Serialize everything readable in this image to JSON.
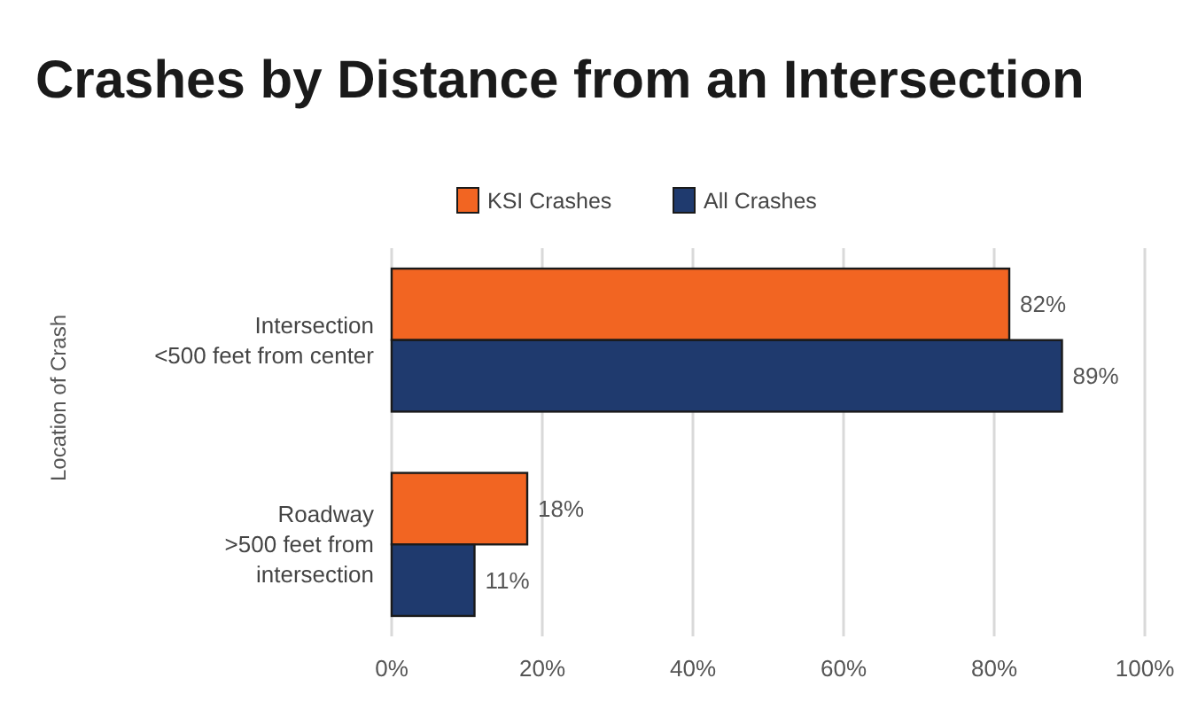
{
  "chart_data": {
    "type": "bar",
    "orientation": "horizontal",
    "title": "Crashes by Distance from an Intersection",
    "ylabel": "Location of Crash",
    "categories": [
      "Intersection\n<500 feet from center",
      "Roadway\n>500 feet from\nintersection"
    ],
    "series": [
      {
        "name": "KSI Crashes",
        "color": "#f26522",
        "values": [
          82,
          18
        ],
        "value_labels": [
          "82%",
          "18%"
        ]
      },
      {
        "name": "All Crashes",
        "color": "#1f3a6e",
        "values": [
          89,
          11
        ],
        "value_labels": [
          "89%",
          "11%"
        ]
      }
    ],
    "xlim": [
      0,
      100
    ],
    "xticks": [
      {
        "value": 0,
        "label": "0%"
      },
      {
        "value": 20,
        "label": "20%"
      },
      {
        "value": 40,
        "label": "40%"
      },
      {
        "value": 60,
        "label": "60%"
      },
      {
        "value": 80,
        "label": "80%"
      },
      {
        "value": 100,
        "label": "100%"
      }
    ],
    "grid": "x",
    "legend": "top"
  }
}
